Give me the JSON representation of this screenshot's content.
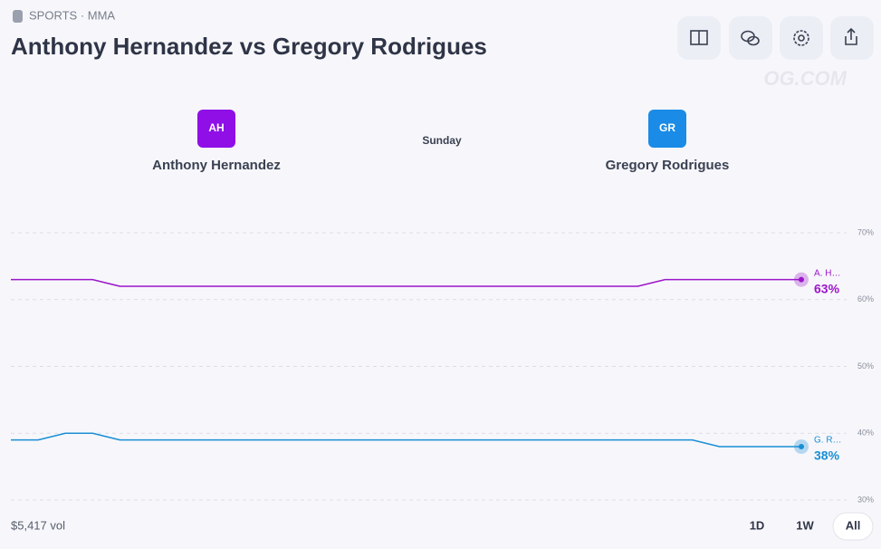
{
  "header": {
    "breadcrumb": "SPORTS · MMA",
    "title": "Anthony Hernandez vs Gregory Rodrigues",
    "watermark": "OG.COM"
  },
  "matchup": {
    "left": {
      "initials": "AH",
      "name": "Anthony Hernandez"
    },
    "day": "Sunday",
    "right": {
      "initials": "GR",
      "name": "Gregory Rodrigues"
    }
  },
  "chart_data": {
    "type": "line",
    "ylim": [
      30,
      70
    ],
    "yticks": [
      {
        "value": 30,
        "label": "30%"
      },
      {
        "value": 40,
        "label": "40%"
      },
      {
        "value": 50,
        "label": "50%"
      },
      {
        "value": 60,
        "label": "60%"
      },
      {
        "value": 70,
        "label": "70%"
      }
    ],
    "grid": true,
    "series": [
      {
        "name": "A. H…",
        "color": "#9b16c9",
        "current": 63,
        "current_label": "63%",
        "values": [
          63,
          63,
          63,
          63,
          62,
          62,
          62,
          62,
          62,
          62,
          62,
          62,
          62,
          62,
          62,
          62,
          62,
          62,
          62,
          62,
          62,
          62,
          62,
          62,
          63,
          63,
          63,
          63,
          63,
          63
        ]
      },
      {
        "name": "G. R…",
        "color": "#1a8fd4",
        "current": 38,
        "current_label": "38%",
        "values": [
          39,
          39,
          40,
          40,
          39,
          39,
          39,
          39,
          39,
          39,
          39,
          39,
          39,
          39,
          39,
          39,
          39,
          39,
          39,
          39,
          39,
          39,
          39,
          39,
          39,
          39,
          38,
          38,
          38,
          38
        ]
      }
    ]
  },
  "footer": {
    "volume": "$5,417 vol",
    "ranges": [
      "1D",
      "1W",
      "All"
    ],
    "selected_range": 2
  }
}
